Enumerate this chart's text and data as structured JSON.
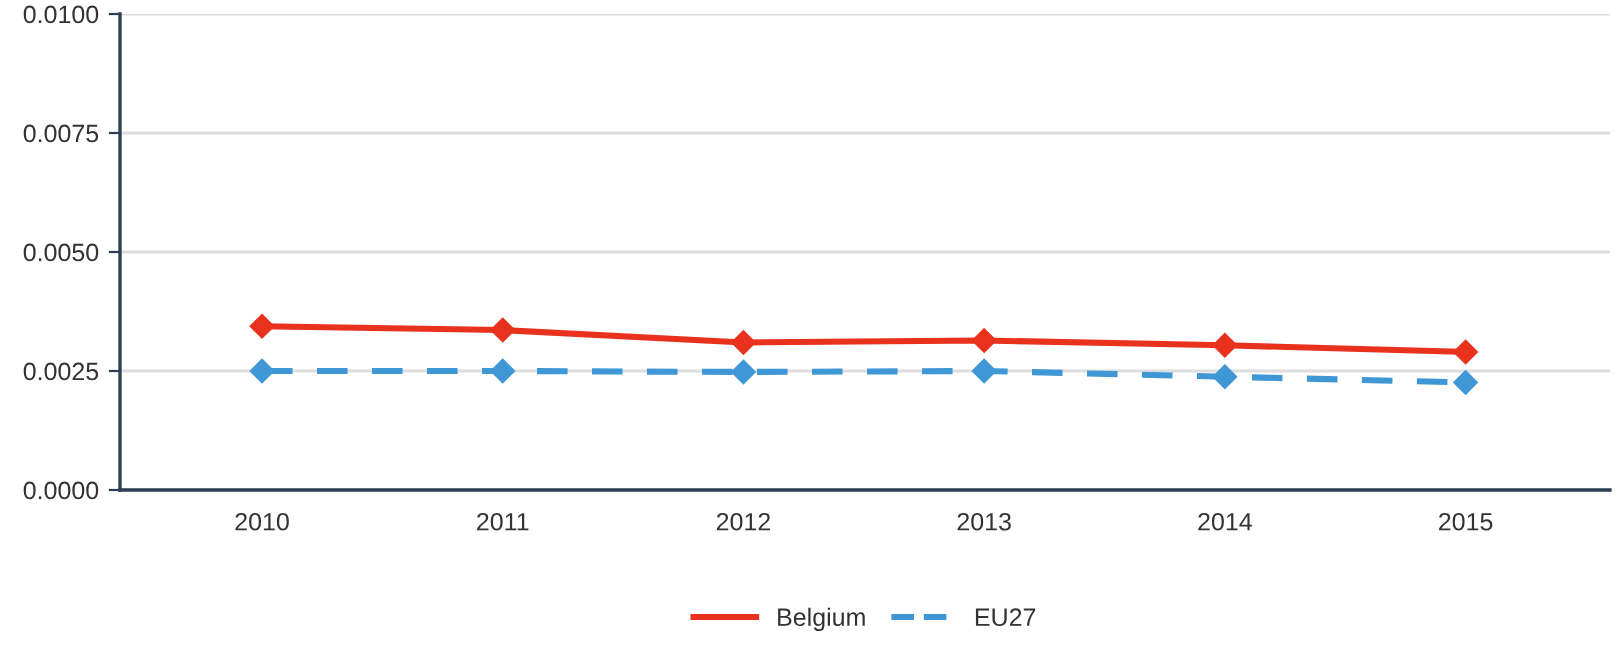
{
  "chart_data": {
    "type": "line",
    "x": [
      2010,
      2011,
      2012,
      2013,
      2014,
      2015
    ],
    "series": [
      {
        "name": "Belgium",
        "color": "#e8321e",
        "values": [
          0.00344,
          0.00336,
          0.0031,
          0.00314,
          0.00304,
          0.0029
        ],
        "line_style": "solid"
      },
      {
        "name": "EU27",
        "color": "#3f97d6",
        "values": [
          0.0025,
          0.0025,
          0.00248,
          0.0025,
          0.00238,
          0.00226
        ],
        "line_style": "dashed"
      }
    ],
    "xlim": [
      2009.41,
      2015.6
    ],
    "xticks": [
      2010,
      2011,
      2012,
      2013,
      2014,
      2015
    ],
    "ylim": [
      0,
      0.01
    ],
    "yticks": [
      {
        "value": 0,
        "label": "0.0000"
      },
      {
        "value": 0.0025,
        "label": "0.0025"
      },
      {
        "value": 0.005,
        "label": "0.0050"
      },
      {
        "value": 0.0075,
        "label": "0.0075"
      },
      {
        "value": 0.01,
        "label": "0.0100"
      }
    ],
    "grid": "y",
    "legend": "bottom",
    "marker": "diamond"
  }
}
